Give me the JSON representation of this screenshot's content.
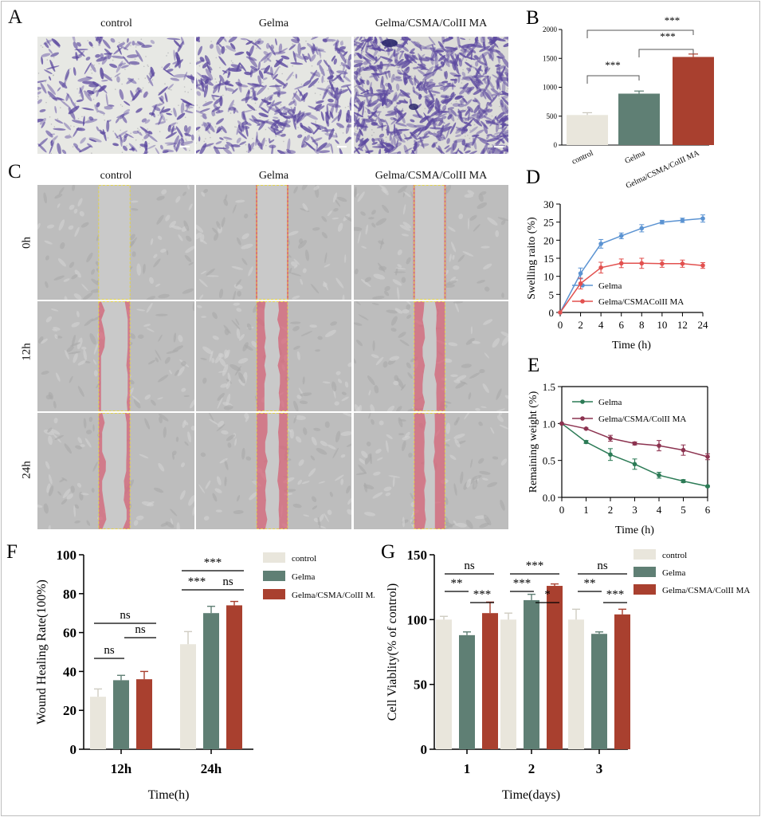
{
  "panels": {
    "A": {
      "letter": "A",
      "columns": [
        "control",
        "Gelma",
        "Gelma/CSMA/ColII MA"
      ]
    },
    "C": {
      "letter": "C",
      "columns": [
        "control",
        "Gelma",
        "Gelma/CSMA/ColII MA"
      ],
      "rows": [
        "0h",
        "12h",
        "24h"
      ]
    },
    "B": {
      "letter": "B"
    },
    "D": {
      "letter": "D"
    },
    "E": {
      "letter": "E"
    },
    "F": {
      "letter": "F"
    },
    "G": {
      "letter": "G"
    }
  },
  "colors": {
    "control": "#e9e6dc",
    "gelma": "#5f7f74",
    "composite": "#a9402f",
    "line_gelma_D": "#5b93d2",
    "line_comp_D": "#e2514f",
    "line_gelma_E": "#2c7b56",
    "line_comp_E": "#8c3350",
    "crystal_violet": "#5d4aa0",
    "wound_red": "#d8667a"
  },
  "chart_data": [
    {
      "id": "B",
      "type": "bar",
      "categories": [
        "control",
        "Gelma",
        "Gelma/CSMA/ColII MA"
      ],
      "values": [
        520,
        890,
        1525
      ],
      "errors": [
        40,
        45,
        50
      ],
      "ylim": [
        0,
        2000
      ],
      "yticks": [
        "0",
        "500",
        "1000",
        "1500",
        "2000"
      ],
      "significance": [
        "***",
        "***",
        "***"
      ]
    },
    {
      "id": "D",
      "type": "line",
      "x": [
        0,
        2,
        4,
        6,
        8,
        10,
        12,
        24
      ],
      "xticks": [
        "0",
        "2",
        "4",
        "6",
        "8",
        "10",
        "12",
        "24"
      ],
      "yticks": [
        "0",
        "5",
        "10",
        "15",
        "20",
        "25",
        "30"
      ],
      "ylim": [
        0,
        30
      ],
      "xlabel": "Time (h)",
      "ylabel": "Swelling raito (%)",
      "series": [
        {
          "name": "Gelma",
          "values": [
            0,
            10.8,
            19,
            21.2,
            23.3,
            25,
            25.5,
            26
          ],
          "errors": [
            0,
            1.5,
            1.2,
            0.8,
            1.0,
            0.5,
            0.6,
            1.0
          ]
        },
        {
          "name": "Gelma/CSMAColII MA",
          "values": [
            0,
            8,
            12.4,
            13.6,
            13.6,
            13.5,
            13.5,
            13
          ],
          "errors": [
            0,
            1.5,
            1.5,
            1.2,
            1.4,
            1.0,
            1.0,
            0.8
          ]
        }
      ]
    },
    {
      "id": "E",
      "type": "line",
      "x": [
        0,
        1,
        2,
        3,
        4,
        5,
        6
      ],
      "xticks": [
        "0",
        "1",
        "2",
        "3",
        "4",
        "5",
        "6"
      ],
      "yticks": [
        "0.0",
        "0.5",
        "1.0",
        "1.5"
      ],
      "ylim": [
        0,
        1.5
      ],
      "xlabel": "Time (h)",
      "ylabel": "Remaining weight (%)",
      "series": [
        {
          "name": "Gelma",
          "values": [
            1.0,
            0.75,
            0.58,
            0.45,
            0.3,
            0.22,
            0.15
          ],
          "errors": [
            0,
            0.02,
            0.08,
            0.07,
            0.04,
            0.02,
            0.01
          ]
        },
        {
          "name": "Gelma/CSMA/ColII MA",
          "values": [
            1.0,
            0.93,
            0.8,
            0.73,
            0.7,
            0.64,
            0.55
          ],
          "errors": [
            0,
            0.01,
            0.04,
            0.02,
            0.07,
            0.07,
            0.04
          ]
        }
      ]
    },
    {
      "id": "F",
      "type": "bar",
      "categories": [
        "12h",
        "24h"
      ],
      "series": [
        {
          "name": "control",
          "values": [
            27,
            54
          ],
          "errors": [
            4,
            6.5
          ]
        },
        {
          "name": "Gelma",
          "values": [
            35.5,
            70
          ],
          "errors": [
            2.5,
            3.5
          ]
        },
        {
          "name": "Gelma/CSMA/ColII MA",
          "values": [
            36,
            74
          ],
          "errors": [
            4,
            2
          ]
        }
      ],
      "ylim": [
        0,
        100
      ],
      "yticks": [
        "0",
        "20",
        "40",
        "60",
        "80",
        "100"
      ],
      "xlabel": "Time(h)",
      "ylabel": "Wound Healing Rate(100%)",
      "significance": [
        "ns",
        "ns",
        "ns",
        "***",
        "***",
        "ns"
      ]
    },
    {
      "id": "G",
      "type": "bar",
      "categories": [
        "1",
        "2",
        "3"
      ],
      "series": [
        {
          "name": "control",
          "values": [
            100,
            100,
            100
          ],
          "errors": [
            2.5,
            5,
            8
          ]
        },
        {
          "name": "Gelma",
          "values": [
            88,
            115,
            89
          ],
          "errors": [
            2.5,
            4.5,
            1.5
          ]
        },
        {
          "name": "Gelma/CSMA/ColII MA",
          "values": [
            105,
            126,
            104
          ],
          "errors": [
            8.5,
            1.5,
            4
          ]
        }
      ],
      "ylim": [
        0,
        150
      ],
      "yticks": [
        "0",
        "50",
        "100",
        "150"
      ],
      "xlabel": "Time(days)",
      "ylabel": "Cell Viablity(% of control)",
      "significance": [
        "ns",
        "**",
        "***",
        "***",
        "***",
        "*",
        "ns",
        "**",
        "***"
      ]
    }
  ]
}
